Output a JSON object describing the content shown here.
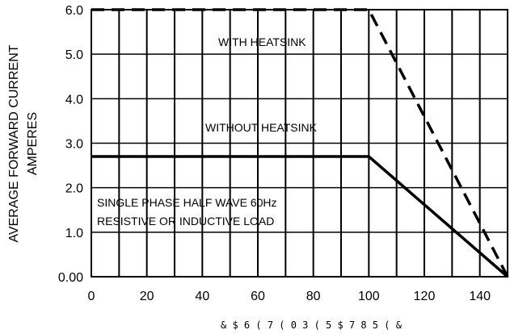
{
  "chart_data": {
    "type": "line",
    "title": "",
    "ylabel_lines": [
      "AVERAGE FORWARD CURRENT",
      "AMPERES"
    ],
    "xlabel": "& $ 6 (   7 ( 0 3 ( 5 $ 7 8 5 (        &",
    "xlim": [
      0,
      150
    ],
    "ylim": [
      0,
      6
    ],
    "x_ticks": [
      0,
      20,
      40,
      60,
      80,
      100,
      120,
      140
    ],
    "x_tick_labels": [
      "0",
      "20",
      "40",
      "60",
      "80",
      "100",
      "120",
      "140"
    ],
    "y_ticks": [
      0,
      1,
      2,
      3,
      4,
      5,
      6
    ],
    "y_tick_labels": [
      "0.00",
      "1.0",
      "2.0",
      "3.0",
      "4.0",
      "5.0",
      "6.0"
    ],
    "grid": true,
    "series": [
      {
        "name": "WITH HEATSINK",
        "x": [
          0,
          100,
          150
        ],
        "y": [
          6.0,
          6.0,
          0.0
        ],
        "style": "dashed"
      },
      {
        "name": "WITHOUT HEATSINK",
        "x": [
          0,
          100,
          150
        ],
        "y": [
          2.7,
          2.7,
          0.0
        ],
        "style": "solid"
      }
    ],
    "annotations": [
      {
        "text": "WITH HEATSINK"
      },
      {
        "text": "WITHOUT HEATSINK"
      },
      {
        "text": "SINGLE PHASE HALF WAVE  60Hz"
      },
      {
        "text": "RESISTIVE OR INDUCTIVE LOAD"
      }
    ]
  }
}
